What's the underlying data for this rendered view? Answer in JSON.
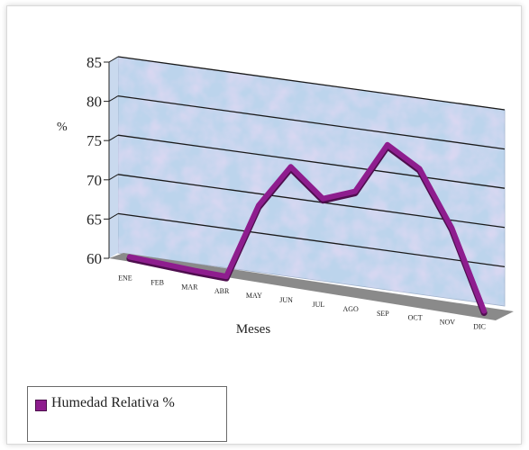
{
  "chart_data": {
    "type": "line",
    "style": "3d",
    "categories": [
      "ENE",
      "FEB",
      "MAR",
      "ABR",
      "MAY",
      "JUN",
      "JUL",
      "AGO",
      "SEP",
      "OCT",
      "NOV",
      "DIC"
    ],
    "series": [
      {
        "name": "Humedad Relativa %",
        "values": [
          60.2,
          59.9,
          59.6,
          59.4,
          69.0,
          74.5,
          71.0,
          72.5,
          79.0,
          76.5,
          69.5,
          59.5
        ],
        "color": "#8e1d8e"
      }
    ],
    "yticks": [
      "60",
      "65",
      "70",
      "75",
      "80",
      "85"
    ],
    "ylim": [
      60,
      85
    ],
    "ylabel": "%",
    "xlabel": "Meses",
    "grid": true,
    "legend_position": "bottom-left",
    "wall_color": "#bcd4ec",
    "floor_color": "#8a8a8a"
  }
}
